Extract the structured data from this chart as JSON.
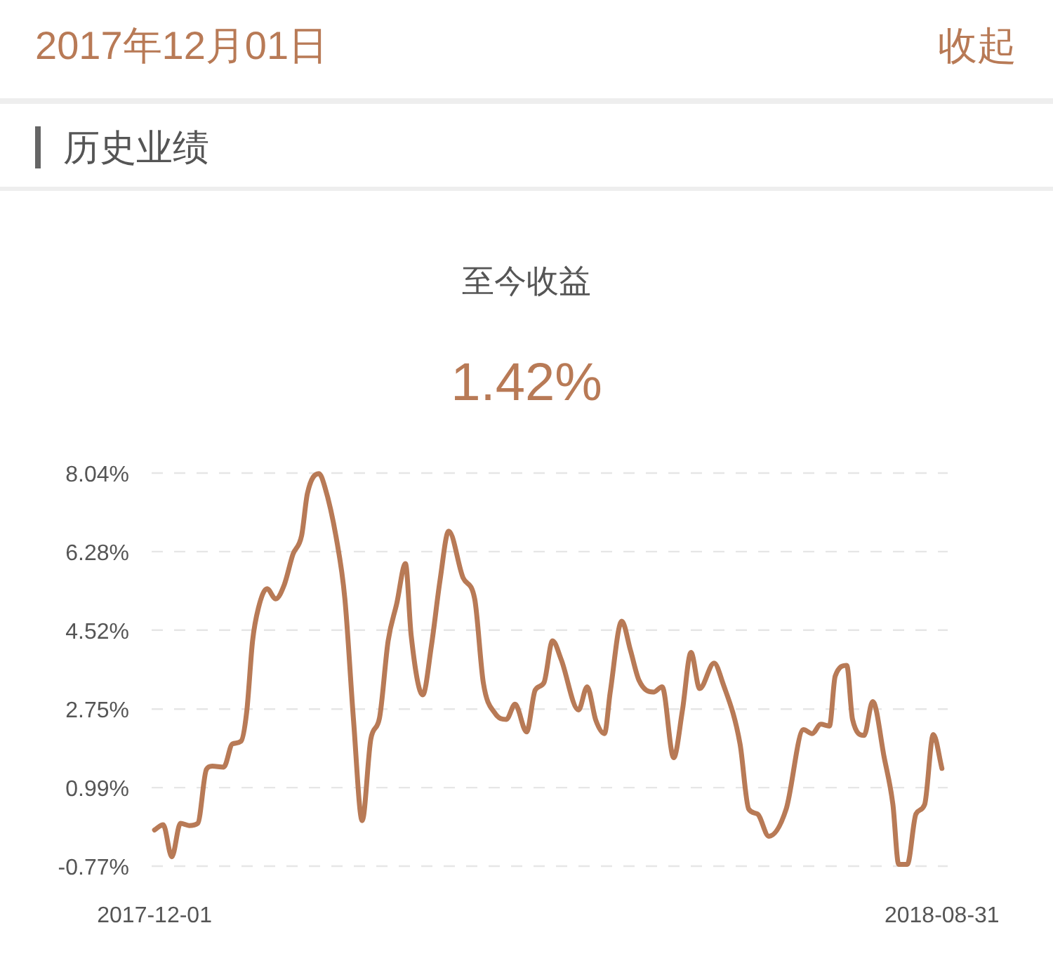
{
  "chart_data": {
    "type": "line",
    "title": "至今收益",
    "subtitle": "1.42%",
    "annotations": [
      "2017年12月01日",
      "收起",
      "历史业绩"
    ],
    "x": [
      "2017-12-01",
      "2017-12-04",
      "2017-12-07",
      "2017-12-10",
      "2017-12-13",
      "2017-12-16",
      "2017-12-19",
      "2017-12-21",
      "2017-12-25",
      "2017-12-28",
      "2017-12-31",
      "2018-01-02",
      "2018-01-04",
      "2018-01-06",
      "2018-01-09",
      "2018-01-12",
      "2018-01-15",
      "2018-01-18",
      "2018-01-21",
      "2018-01-23",
      "2018-01-27",
      "2018-01-29",
      "2018-02-02",
      "2018-02-05",
      "2018-02-08",
      "2018-02-11",
      "2018-02-14",
      "2018-02-17",
      "2018-02-20",
      "2018-02-23",
      "2018-02-26",
      "2018-02-28",
      "2018-03-04",
      "2018-03-07",
      "2018-03-10",
      "2018-03-13",
      "2018-03-18",
      "2018-03-22",
      "2018-03-25",
      "2018-03-29",
      "2018-04-02",
      "2018-04-05",
      "2018-04-09",
      "2018-04-12",
      "2018-04-15",
      "2018-04-18",
      "2018-04-21",
      "2018-04-27",
      "2018-04-30",
      "2018-05-03",
      "2018-05-06",
      "2018-05-08",
      "2018-05-12",
      "2018-05-15",
      "2018-05-18",
      "2018-05-23",
      "2018-05-26",
      "2018-05-30",
      "2018-06-02",
      "2018-06-05",
      "2018-06-08",
      "2018-06-13",
      "2018-06-16",
      "2018-06-22",
      "2018-06-25",
      "2018-06-28",
      "2018-07-02",
      "2018-07-08",
      "2018-07-14",
      "2018-07-17",
      "2018-07-20",
      "2018-07-23",
      "2018-07-25",
      "2018-07-29",
      "2018-07-31",
      "2018-08-04",
      "2018-08-07",
      "2018-08-11",
      "2018-08-14",
      "2018-08-16",
      "2018-08-19",
      "2018-08-22",
      "2018-08-25",
      "2018-08-28",
      "2018-08-31"
    ],
    "series": [
      {
        "color": "#b87a56",
        "values": [
          0.04,
          0.16,
          -0.56,
          0.19,
          0.14,
          0.19,
          1.4,
          1.47,
          1.45,
          1.97,
          2.03,
          2.71,
          4.28,
          5.01,
          5.45,
          5.22,
          5.54,
          6.22,
          6.64,
          7.58,
          8.03,
          7.74,
          6.59,
          5.22,
          2.5,
          0.25,
          2.08,
          2.55,
          4.28,
          5.12,
          6.01,
          4.39,
          3.07,
          4.17,
          5.64,
          6.74,
          5.69,
          5.22,
          3.34,
          2.66,
          2.52,
          2.86,
          2.24,
          3.18,
          3.34,
          4.28,
          3.86,
          2.73,
          3.25,
          2.5,
          2.2,
          3.13,
          4.72,
          4.07,
          3.39,
          3.13,
          3.25,
          1.66,
          2.71,
          4.02,
          3.21,
          3.78,
          3.34,
          1.97,
          0.51,
          0.4,
          -0.1,
          0.51,
          2.29,
          2.2,
          2.41,
          2.37,
          3.49,
          3.73,
          2.52,
          2.16,
          2.92,
          1.66,
          0.61,
          -0.73,
          -0.73,
          0.4,
          0.61,
          2.18,
          1.42
        ]
      }
    ],
    "xlim": [
      "2017-11-30",
      "2018-09-02"
    ],
    "xticks": [
      {
        "value": "2017-12-01",
        "label": "2017-12-01"
      },
      {
        "value": "2018-08-31",
        "label": "2018-08-31"
      }
    ],
    "ylim": [
      -0.77,
      8.04
    ],
    "yticks": [
      {
        "value": -0.77,
        "label": "-0.77%"
      },
      {
        "value": 0.99,
        "label": "0.99%"
      },
      {
        "value": 2.75,
        "label": "2.75%"
      },
      {
        "value": 4.52,
        "label": "4.52%"
      },
      {
        "value": 6.28,
        "label": "6.28%"
      },
      {
        "value": 8.04,
        "label": "8.04%"
      }
    ],
    "grid": "y"
  }
}
